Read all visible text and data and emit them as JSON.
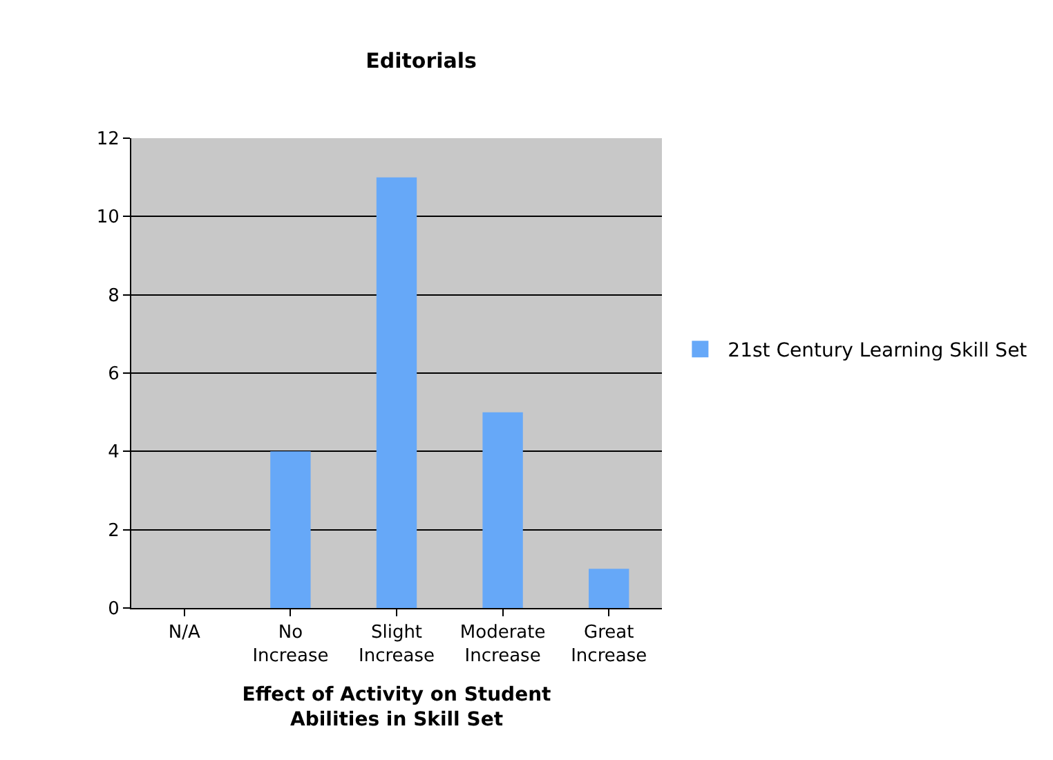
{
  "chart_data": {
    "type": "bar",
    "title": "Editorials",
    "categories": [
      "N/A",
      "No Increase",
      "Slight Increase",
      "Moderate Increase",
      "Great Increase"
    ],
    "series": [
      {
        "name": "21st Century Learning Skill Set",
        "color": "#66a8f8",
        "values": [
          0,
          4,
          11,
          5,
          1
        ]
      }
    ],
    "xlabel": "Effect of Activity on Student Abilities in Skill Set",
    "ylim": [
      0,
      12
    ],
    "yticks": [
      0,
      2,
      4,
      6,
      8,
      10,
      12
    ],
    "grid": "y",
    "legend": "right"
  }
}
